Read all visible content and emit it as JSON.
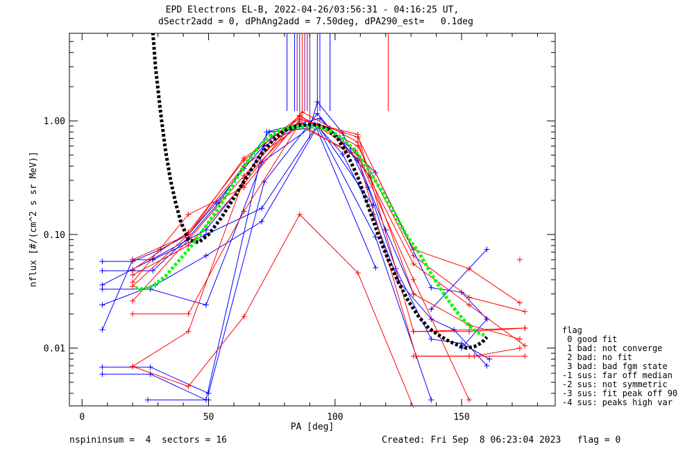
{
  "title_line1": "EPD Electrons EL-B, 2022-04-26/03:56:31 - 04:16:25 UT,",
  "title_line2": "dSectr2add = 0, dPhAng2add = 7.50deg, dPA290_est=   0.1deg",
  "legend": {
    "title": "flag",
    "entries": [
      " 0 good fit",
      " 1 bad: not converge",
      " 2 bad: no fit",
      " 3 bad: bad fgm state",
      "-1 sus: far off median",
      "-2 sus: not symmetric",
      "-3 sus: fit peak off 90",
      "-4 sus: peaks high var"
    ]
  },
  "footer_left": "nspininsum =  4  sectors = 16",
  "footer_right": "Created: Fri Sep  8 06:23:04 2023   flag = 0",
  "colors": {
    "red": "#ff0000",
    "blue": "#0000ff",
    "black": "#000000",
    "green": "#00ff00",
    "purple": "#800080"
  },
  "chart_data": {
    "type": "line",
    "xlabel": "PA [deg]",
    "ylabel": "nflux [#/(cm^2 s sr MeV)]",
    "xlim": [
      -5,
      187
    ],
    "ylim": [
      0.0031,
      5.9
    ],
    "yscale": "log",
    "xticks": [
      0,
      50,
      100,
      150
    ],
    "xtick_labels": [
      "0",
      "50",
      "100",
      "150"
    ],
    "yticks": [
      0.01,
      0.1,
      1.0
    ],
    "ytick_labels": [
      "0.01",
      "0.10",
      "1.00"
    ],
    "grid": false,
    "series": [
      {
        "color": "blue",
        "x": [
          8,
          20,
          31,
          42,
          53,
          64,
          75,
          86,
          98,
          109,
          120,
          131
        ],
        "y": [
          0.058,
          0.058,
          0.074,
          0.1,
          0.19,
          0.38,
          0.73,
          0.95,
          0.86,
          0.45,
          0.11,
          0.03
        ]
      },
      {
        "color": "blue",
        "x": [
          8,
          20,
          28,
          42,
          54,
          64,
          74,
          90,
          93,
          103,
          113,
          124,
          138,
          150,
          161
        ],
        "y": [
          0.048,
          0.048,
          0.048,
          0.094,
          0.19,
          0.4,
          0.8,
          0.86,
          1.47,
          0.78,
          0.26,
          0.05,
          0.012,
          0.011,
          0.008
        ]
      },
      {
        "color": "blue",
        "x": [
          8,
          28,
          49,
          63,
          72,
          86,
          93,
          103,
          115,
          125,
          138,
          147,
          160
        ],
        "y": [
          0.036,
          0.061,
          0.11,
          0.27,
          0.6,
          0.9,
          0.9,
          0.51,
          0.15,
          0.039,
          0.018,
          0.0145,
          0.007
        ]
      },
      {
        "color": "blue",
        "x": [
          8,
          27,
          49,
          71,
          92,
          116
        ],
        "y": [
          0.033,
          0.033,
          0.024,
          0.43,
          0.93,
          0.051
        ]
      },
      {
        "color": "blue",
        "x": [
          8,
          29,
          49,
          71,
          93,
          116,
          138
        ],
        "y": [
          0.024,
          0.036,
          0.065,
          0.13,
          0.89,
          0.095,
          0.0035
        ]
      },
      {
        "color": "blue",
        "x": [
          8,
          20,
          28,
          49,
          71,
          93,
          115
        ],
        "y": [
          0.0145,
          0.06,
          0.06,
          0.1,
          0.17,
          0.92,
          0.18
        ]
      },
      {
        "color": "blue",
        "x": [
          8,
          27,
          50,
          72,
          93,
          114
        ],
        "y": [
          0.0068,
          0.0068,
          0.004,
          0.29,
          1.16,
          0.32
        ]
      },
      {
        "color": "blue",
        "x": [
          8,
          27,
          49,
          73,
          94,
          116,
          138,
          150,
          160
        ],
        "y": [
          0.0059,
          0.0059,
          0.0035,
          0.8,
          1.05,
          0.35,
          0.034,
          0.031,
          0.018
        ]
      },
      {
        "color": "blue",
        "x": [
          26,
          50
        ],
        "y": [
          0.0035,
          0.0035
        ]
      },
      {
        "color": "blue",
        "x": [
          138,
          160
        ],
        "y": [
          0.022,
          0.074
        ]
      },
      {
        "color": "blue",
        "x": [
          150,
          160
        ],
        "y": [
          0.01,
          0.018
        ]
      },
      {
        "color": "red",
        "x": [
          20,
          42,
          64,
          86,
          109,
          131,
          153,
          173
        ],
        "y": [
          0.06,
          0.1,
          0.47,
          1.05,
          0.72,
          0.074,
          0.05,
          0.025
        ]
      },
      {
        "color": "red",
        "x": [
          20,
          42,
          64,
          86,
          109,
          131,
          153,
          175
        ],
        "y": [
          0.049,
          0.105,
          0.45,
          1.1,
          0.6,
          0.065,
          0.028,
          0.021
        ]
      },
      {
        "color": "red",
        "x": [
          20,
          42,
          64,
          87,
          109,
          131,
          153,
          173
        ],
        "y": [
          0.044,
          0.08,
          0.28,
          1.2,
          0.65,
          0.03,
          0.016,
          0.012
        ]
      },
      {
        "color": "red",
        "x": [
          20,
          42,
          64,
          86,
          109,
          131,
          175
        ],
        "y": [
          0.038,
          0.15,
          0.26,
          1.02,
          0.76,
          0.014,
          0.015
        ]
      },
      {
        "color": "red",
        "x": [
          20,
          42,
          64,
          86,
          109,
          131,
          153,
          175
        ],
        "y": [
          0.035,
          0.1,
          0.4,
          0.9,
          0.5,
          0.055,
          0.024,
          0.0105
        ]
      },
      {
        "color": "red",
        "x": [
          20,
          42,
          64,
          86,
          108,
          131,
          153
        ],
        "y": [
          0.026,
          0.09,
          0.33,
          1.12,
          0.55,
          0.04,
          0.0035
        ]
      },
      {
        "color": "red",
        "x": [
          20,
          42,
          64,
          86,
          109,
          132,
          155,
          173
        ],
        "y": [
          0.02,
          0.02,
          0.16,
          0.95,
          0.47,
          0.0085,
          0.0085,
          0.01
        ]
      },
      {
        "color": "red",
        "x": [
          20,
          42,
          64,
          86,
          109,
          131
        ],
        "y": [
          0.0069,
          0.0046,
          0.019,
          0.15,
          0.046,
          0.003
        ]
      },
      {
        "color": "red",
        "x": [
          20,
          42,
          64,
          86
        ],
        "y": [
          0.0069,
          0.014,
          0.31,
          0.98
        ]
      },
      {
        "color": "red",
        "x": [
          131,
          153,
          175
        ],
        "y": [
          0.0085,
          0.0085,
          0.0085
        ]
      },
      {
        "color": "red",
        "x": [
          131,
          153,
          175
        ],
        "y": [
          0.014,
          0.014,
          0.015
        ]
      },
      {
        "color": "red",
        "x": [
          173
        ],
        "y": [
          0.06
        ]
      }
    ],
    "fits": [
      {
        "color": "black",
        "style": "dotted",
        "x": [
          28,
          29,
          31,
          33,
          35,
          37,
          39,
          42,
          46,
          50,
          55,
          60,
          65,
          70,
          75,
          80,
          85,
          90,
          93,
          97,
          101,
          105,
          109,
          113,
          117,
          121,
          125,
          129,
          133,
          137,
          141,
          145,
          149,
          152,
          155,
          158,
          160
        ],
        "y": [
          6.0,
          3.0,
          1.2,
          0.55,
          0.3,
          0.19,
          0.13,
          0.09,
          0.085,
          0.1,
          0.14,
          0.21,
          0.32,
          0.48,
          0.66,
          0.82,
          0.91,
          0.93,
          0.93,
          0.85,
          0.7,
          0.5,
          0.32,
          0.18,
          0.1,
          0.06,
          0.038,
          0.026,
          0.019,
          0.015,
          0.013,
          0.0115,
          0.0105,
          0.01,
          0.0103,
          0.0112,
          0.0125
        ]
      },
      {
        "color": "green",
        "style": "dotted",
        "x": [
          21,
          24,
          28,
          33,
          38,
          43,
          48,
          53,
          58,
          63,
          68,
          73,
          78,
          83,
          88,
          93,
          98,
          103,
          108,
          113,
          118,
          123,
          128,
          133,
          138,
          143,
          148,
          152,
          155,
          157,
          159
        ],
        "y": [
          0.034,
          0.033,
          0.035,
          0.043,
          0.058,
          0.078,
          0.11,
          0.16,
          0.24,
          0.37,
          0.53,
          0.7,
          0.83,
          0.88,
          0.89,
          0.88,
          0.82,
          0.7,
          0.54,
          0.38,
          0.25,
          0.16,
          0.1,
          0.07,
          0.045,
          0.03,
          0.021,
          0.0165,
          0.0145,
          0.0135,
          0.013
        ]
      }
    ],
    "vlines": [
      {
        "color": "blue",
        "x": 81
      },
      {
        "color": "blue",
        "x": 84
      },
      {
        "color": "purple",
        "x": 85
      },
      {
        "color": "purple",
        "x": 86
      },
      {
        "color": "red",
        "x": 87
      },
      {
        "color": "purple",
        "x": 88
      },
      {
        "color": "purple",
        "x": 89
      },
      {
        "color": "purple",
        "x": 90
      },
      {
        "color": "blue",
        "x": 93
      },
      {
        "color": "blue",
        "x": 94
      },
      {
        "color": "blue",
        "x": 98
      },
      {
        "color": "red",
        "x": 121
      }
    ]
  }
}
